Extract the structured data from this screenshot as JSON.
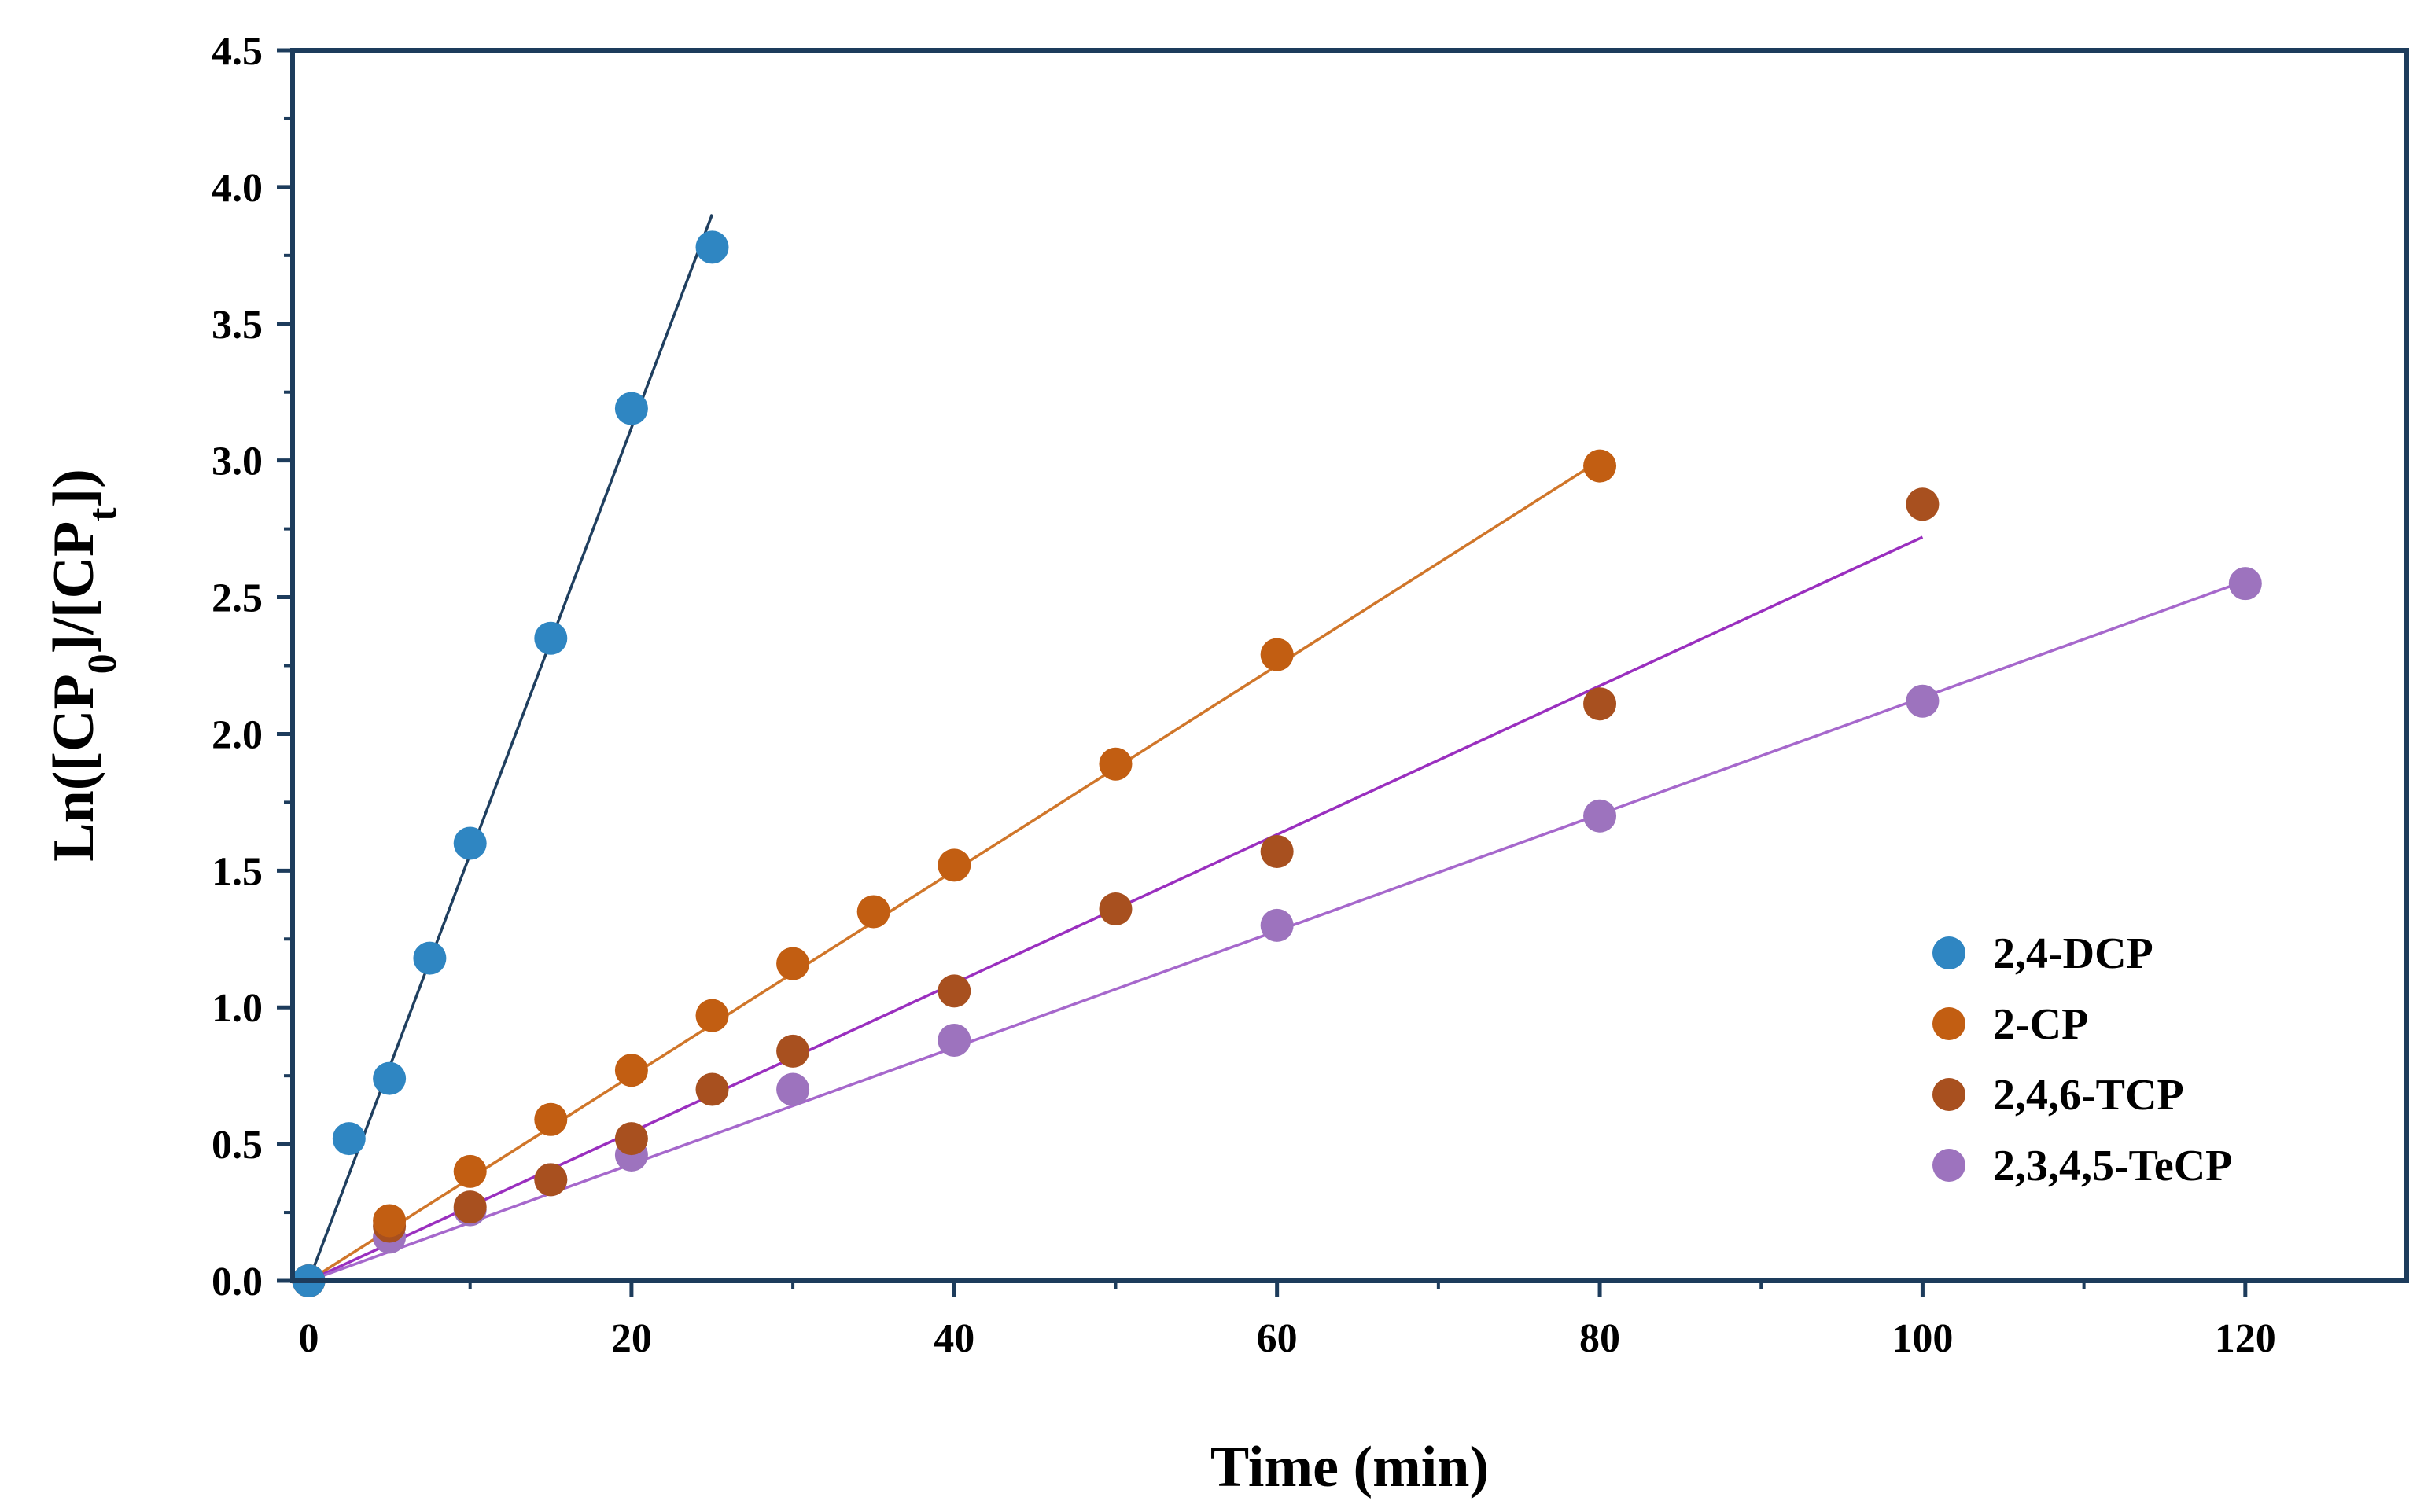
{
  "chart_data": {
    "type": "scatter",
    "xlabel": "Time (min)",
    "ylabel_parts": [
      "Ln([CP",
      "0",
      "]/[CP",
      "t",
      "])"
    ],
    "xlim": [
      -1,
      130
    ],
    "ylim": [
      0,
      4.5
    ],
    "x_ticks": [
      0,
      20,
      40,
      60,
      80,
      100,
      120
    ],
    "y_ticks": [
      0.0,
      0.5,
      1.0,
      1.5,
      2.0,
      2.5,
      3.0,
      3.5,
      4.0,
      4.5
    ],
    "legend_position": "right-middle",
    "series": [
      {
        "name": "2,4-DCP",
        "color": "#2f86c2",
        "line_color": "#1f3f5f",
        "points": [
          [
            0,
            0.0
          ],
          [
            2.5,
            0.52
          ],
          [
            5,
            0.74
          ],
          [
            7.5,
            1.18
          ],
          [
            10,
            1.6
          ],
          [
            15,
            2.35
          ],
          [
            20,
            3.19
          ],
          [
            25,
            3.78
          ]
        ],
        "fit": [
          [
            0,
            0.0
          ],
          [
            25,
            3.9
          ]
        ]
      },
      {
        "name": "2-CP",
        "color": "#c25e12",
        "line_color": "#d0762a",
        "points": [
          [
            0,
            0.0
          ],
          [
            5,
            0.22
          ],
          [
            10,
            0.4
          ],
          [
            15,
            0.59
          ],
          [
            20,
            0.77
          ],
          [
            25,
            0.97
          ],
          [
            30,
            1.16
          ],
          [
            35,
            1.35
          ],
          [
            40,
            1.52
          ],
          [
            50,
            1.89
          ],
          [
            60,
            2.29
          ],
          [
            80,
            2.98
          ]
        ],
        "fit": [
          [
            0,
            0.0
          ],
          [
            80,
            3.0
          ]
        ]
      },
      {
        "name": "2,4,6-TCP",
        "color": "#a8501f",
        "line_color": "#9a2fbf",
        "points": [
          [
            0,
            0.0
          ],
          [
            5,
            0.2
          ],
          [
            10,
            0.27
          ],
          [
            15,
            0.37
          ],
          [
            20,
            0.52
          ],
          [
            25,
            0.7
          ],
          [
            30,
            0.84
          ],
          [
            40,
            1.06
          ],
          [
            50,
            1.36
          ],
          [
            60,
            1.57
          ],
          [
            80,
            2.11
          ],
          [
            100,
            2.84
          ]
        ],
        "fit": [
          [
            0,
            0.0
          ],
          [
            100,
            2.72
          ]
        ]
      },
      {
        "name": "2,3,4,5-TeCP",
        "color": "#9d73be",
        "line_color": "#a668cc",
        "points": [
          [
            0,
            0.0
          ],
          [
            5,
            0.16
          ],
          [
            10,
            0.26
          ],
          [
            15,
            0.37
          ],
          [
            20,
            0.46
          ],
          [
            30,
            0.7
          ],
          [
            40,
            0.88
          ],
          [
            60,
            1.3
          ],
          [
            80,
            1.7
          ],
          [
            100,
            2.12
          ],
          [
            120,
            2.55
          ]
        ],
        "fit": [
          [
            0,
            0.0
          ],
          [
            120,
            2.56
          ]
        ]
      }
    ]
  }
}
